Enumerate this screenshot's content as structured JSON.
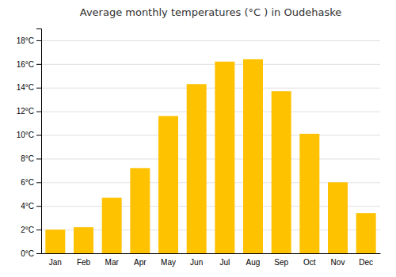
{
  "chart_data": {
    "type": "bar",
    "title": "Average monthly temperatures (°C ) in Oudehaske",
    "categories": [
      "Jan",
      "Feb",
      "Mar",
      "Apr",
      "May",
      "Jun",
      "Jul",
      "Aug",
      "Sep",
      "Oct",
      "Nov",
      "Dec"
    ],
    "values": [
      2.0,
      2.2,
      4.7,
      7.2,
      11.6,
      14.3,
      16.2,
      16.4,
      13.7,
      10.1,
      6.0,
      3.4
    ],
    "color": "#FFC200",
    "ylim": [
      0,
      19
    ],
    "yticks": [
      {
        "value": 0,
        "label": "0°C"
      },
      {
        "value": 2,
        "label": "2°C"
      },
      {
        "value": 4,
        "label": "4°C"
      },
      {
        "value": 6,
        "label": "6°C"
      },
      {
        "value": 8,
        "label": "8°C"
      },
      {
        "value": 10,
        "label": "10°C"
      },
      {
        "value": 12,
        "label": "12°C"
      },
      {
        "value": 14,
        "label": "14°C"
      },
      {
        "value": 16,
        "label": "16°C"
      },
      {
        "value": 18,
        "label": "18°C"
      }
    ],
    "grid": true
  }
}
